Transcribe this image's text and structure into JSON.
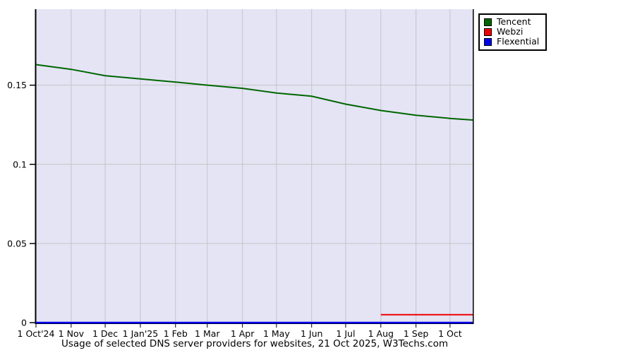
{
  "caption": "Usage of selected DNS server providers for websites, 21 Oct 2025, W3Techs.com",
  "legend": {
    "items": [
      {
        "label": "Tencent",
        "color": "#006600"
      },
      {
        "label": "Webzi",
        "color": "#ee0000"
      },
      {
        "label": "Flexential",
        "color": "#0000ee"
      }
    ]
  },
  "colors": {
    "plot_background": "#e4e4f5",
    "gridline": "#c5c5c5",
    "axis": "#000000"
  },
  "chart_data": {
    "type": "line",
    "title": "Usage of selected DNS server providers for websites, 21 Oct 2025, W3Techs.com",
    "xlabel": "",
    "ylabel": "",
    "x_axis_unit": "days since 1 Oct 2024",
    "x_total_days": 385,
    "x_tick_days": [
      0,
      31,
      61,
      92,
      123,
      151,
      182,
      212,
      243,
      273,
      304,
      335,
      365
    ],
    "x_tick_labels": [
      "1 Oct'24",
      "1 Nov",
      "1 Dec",
      "1 Jan'25",
      "1 Feb",
      "1 Mar",
      "1 Apr",
      "1 May",
      "1 Jun",
      "1 Jul",
      "1 Aug",
      "1 Sep",
      "1 Oct"
    ],
    "y_ticks": [
      0,
      0.05,
      0.1,
      0.15
    ],
    "y_tick_labels": [
      "0",
      "0.05",
      "0.1",
      "0.15"
    ],
    "ylim": [
      0,
      0.198
    ],
    "grid": true,
    "legend_position": "outside-top-right",
    "series": [
      {
        "name": "Tencent",
        "color": "#006600",
        "x_days": [
          0,
          31,
          61,
          92,
          123,
          151,
          182,
          212,
          243,
          273,
          304,
          335,
          365,
          385
        ],
        "values": [
          0.163,
          0.16,
          0.156,
          0.154,
          0.152,
          0.15,
          0.148,
          0.145,
          0.143,
          0.138,
          0.134,
          0.131,
          0.129,
          0.128
        ]
      },
      {
        "name": "Webzi",
        "color": "#ee0000",
        "x_days": [
          304,
          385
        ],
        "values": [
          0.005,
          0.005
        ]
      },
      {
        "name": "Flexential",
        "color": "#0000ee",
        "x_days": [
          0,
          385
        ],
        "values": [
          0,
          0
        ]
      }
    ]
  }
}
